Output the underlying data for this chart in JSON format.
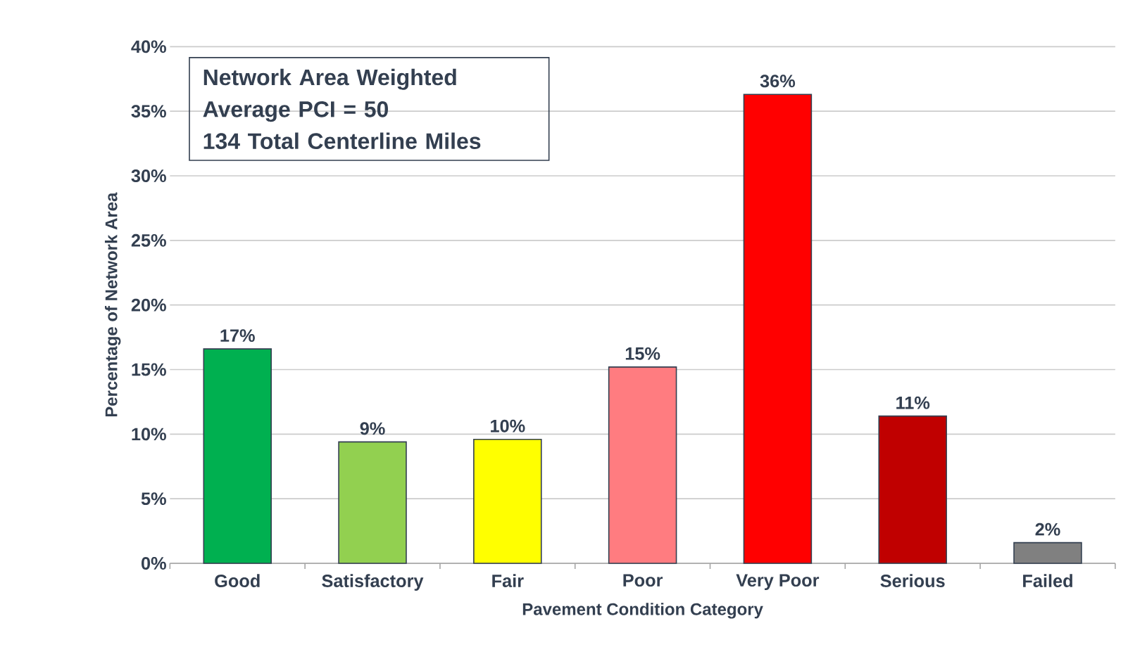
{
  "chart_data": {
    "type": "bar",
    "xlabel": "Pavement Condition Category",
    "ylabel": "Percentage of Network Area",
    "categories": [
      "Good",
      "Satisfactory",
      "Fair",
      "Poor",
      "Very Poor",
      "Serious",
      "Failed"
    ],
    "values": [
      16.6,
      9.4,
      9.6,
      15.2,
      36.3,
      11.4,
      1.6
    ],
    "value_labels": [
      "17%",
      "9%",
      "10%",
      "15%",
      "36%",
      "11%",
      "2%"
    ],
    "colors": [
      "#00b050",
      "#92d050",
      "#ffff00",
      "#ff7c80",
      "#ff0000",
      "#c00000",
      "#808080"
    ],
    "ylim": [
      0,
      40
    ],
    "yticks": [
      {
        "value": 0,
        "label": "0%"
      },
      {
        "value": 5,
        "label": "5%"
      },
      {
        "value": 10,
        "label": "10%"
      },
      {
        "value": 15,
        "label": "15%"
      },
      {
        "value": 20,
        "label": "20%"
      },
      {
        "value": 25,
        "label": "25%"
      },
      {
        "value": 30,
        "label": "30%"
      },
      {
        "value": 35,
        "label": "35%"
      },
      {
        "value": 40,
        "label": "40%"
      }
    ],
    "grid": "y",
    "annotations": [
      "Network Area Weighted",
      "Average PCI = 50",
      "134 Total Centerline Miles"
    ]
  }
}
